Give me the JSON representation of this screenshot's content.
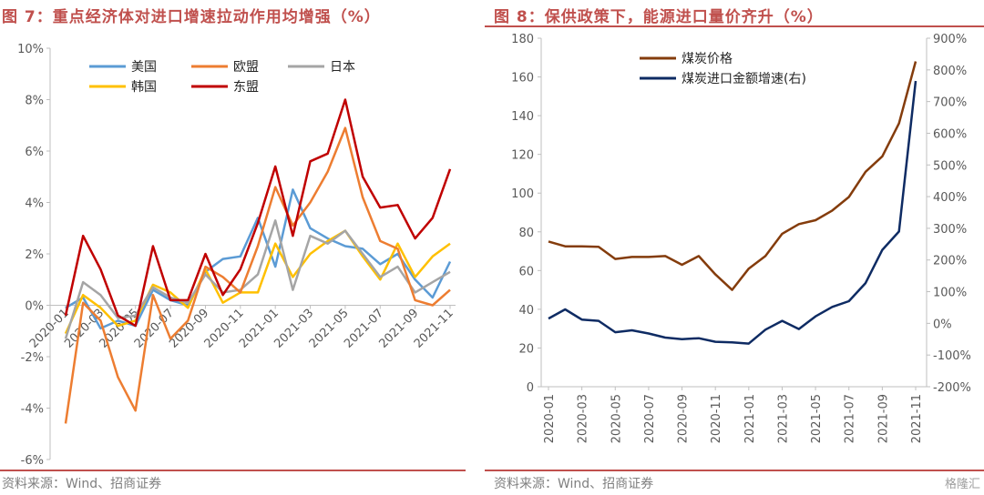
{
  "left": {
    "title": "图 7：重点经济体对进口增速拉动作用均增强（%）",
    "source": "资料来源：Wind、招商证券"
  },
  "right": {
    "title": "图 8：保供政策下，能源进口量价齐升（%）",
    "source": "资料来源：Wind、招商证券",
    "watermark": "格隆汇"
  },
  "chart_data": [
    {
      "type": "line",
      "title": "图 7：重点经济体对进口增速拉动作用均增强（%）",
      "x": [
        "2020-01",
        "2020-02",
        "2020-03",
        "2020-04",
        "2020-05",
        "2020-06",
        "2020-07",
        "2020-08",
        "2020-09",
        "2020-10",
        "2020-11",
        "2020-12",
        "2021-01",
        "2021-02",
        "2021-03",
        "2021-04",
        "2021-05",
        "2021-06",
        "2021-07",
        "2021-08",
        "2021-09",
        "2021-10",
        "2021-11"
      ],
      "x_tick_labels": [
        "2020-01",
        "2020-03",
        "2020-05",
        "2020-07",
        "2020-09",
        "2020-11",
        "2021-01",
        "2021-03",
        "2021-05",
        "2021-07",
        "2021-09",
        "2021-11"
      ],
      "ylim": [
        -6,
        10
      ],
      "y_ticks": [
        -6,
        -4,
        -2,
        0,
        2,
        4,
        6,
        8,
        10
      ],
      "y_unit": "%",
      "grid": false,
      "legend_position": "top",
      "series": [
        {
          "name": "美国",
          "color": "#5b9bd5",
          "values": [
            -0.1,
            0.3,
            -0.9,
            -0.6,
            -0.8,
            0.6,
            0.2,
            0.0,
            1.3,
            1.8,
            1.9,
            3.4,
            1.5,
            4.5,
            3.0,
            2.6,
            2.3,
            2.2,
            1.6,
            2.0,
            1.0,
            0.3,
            1.7
          ]
        },
        {
          "name": "欧盟",
          "color": "#ed7d31",
          "values": [
            -4.6,
            0.1,
            -0.6,
            -2.8,
            -4.1,
            0.4,
            -1.3,
            -0.6,
            1.5,
            1.1,
            0.5,
            2.3,
            4.6,
            3.1,
            4.0,
            5.2,
            6.9,
            4.2,
            2.5,
            2.2,
            0.2,
            0.0,
            0.6
          ]
        },
        {
          "name": "日本",
          "color": "#a5a5a5",
          "values": [
            -1.3,
            0.9,
            0.4,
            -0.5,
            -0.4,
            0.7,
            0.3,
            0.1,
            1.2,
            0.5,
            0.6,
            1.2,
            3.3,
            0.6,
            2.7,
            2.4,
            2.9,
            2.0,
            1.1,
            1.5,
            0.5,
            0.9,
            1.3
          ]
        },
        {
          "name": "韩国",
          "color": "#ffc000",
          "values": [
            -1.1,
            0.4,
            -0.1,
            -0.8,
            -0.6,
            0.8,
            0.5,
            -0.1,
            1.4,
            0.1,
            0.5,
            0.5,
            2.4,
            1.1,
            2.0,
            2.5,
            2.9,
            1.9,
            1.0,
            2.4,
            1.1,
            1.9,
            2.4
          ]
        },
        {
          "name": "东盟",
          "color": "#c00000",
          "values": [
            -0.4,
            2.7,
            1.4,
            -0.4,
            -0.8,
            2.3,
            0.2,
            0.2,
            2.0,
            0.4,
            1.4,
            3.2,
            5.4,
            2.7,
            5.6,
            5.9,
            8.0,
            5.0,
            3.8,
            3.9,
            2.6,
            3.4,
            5.3
          ]
        }
      ]
    },
    {
      "type": "line",
      "title": "图 8：保供政策下，能源进口量价齐升（%）",
      "x": [
        "2020-01",
        "2020-02",
        "2020-03",
        "2020-04",
        "2020-05",
        "2020-06",
        "2020-07",
        "2020-08",
        "2020-09",
        "2020-10",
        "2020-11",
        "2020-12",
        "2021-01",
        "2021-02",
        "2021-03",
        "2021-04",
        "2021-05",
        "2021-06",
        "2021-07",
        "2021-08",
        "2021-09",
        "2021-10",
        "2021-11"
      ],
      "x_tick_labels": [
        "2020-01",
        "2020-03",
        "2020-05",
        "2020-07",
        "2020-09",
        "2020-11",
        "2021-01",
        "2021-03",
        "2021-05",
        "2021-07",
        "2021-09",
        "2021-11"
      ],
      "y_left": {
        "ylim": [
          0,
          180
        ],
        "ticks": [
          0,
          20,
          40,
          60,
          80,
          100,
          120,
          140,
          160,
          180
        ]
      },
      "y_right": {
        "ylim": [
          -200,
          900
        ],
        "ticks": [
          "-200%",
          "-100%",
          "0%",
          "100%",
          "200%",
          "300%",
          "400%",
          "500%",
          "600%",
          "700%",
          "800%",
          "900%"
        ]
      },
      "grid": false,
      "legend_position": "top-left",
      "series": [
        {
          "name": "煤炭价格",
          "axis": "left",
          "color": "#843c0c",
          "values": [
            75,
            72.5,
            72.5,
            72.3,
            66,
            67,
            67,
            67.5,
            63,
            67.5,
            58,
            50,
            61,
            67.5,
            79,
            84,
            86,
            91,
            98,
            111,
            119,
            136,
            168
          ]
        },
        {
          "name": "煤炭进口金额增速(右)",
          "axis": "right",
          "color": "#0e2b63",
          "values": [
            15,
            44,
            12,
            8,
            -28,
            -22,
            -32,
            -45,
            -50,
            -47,
            -58,
            -60,
            -64,
            -20,
            8,
            -18,
            22,
            52,
            70,
            127,
            232,
            290,
            765
          ]
        }
      ]
    }
  ]
}
